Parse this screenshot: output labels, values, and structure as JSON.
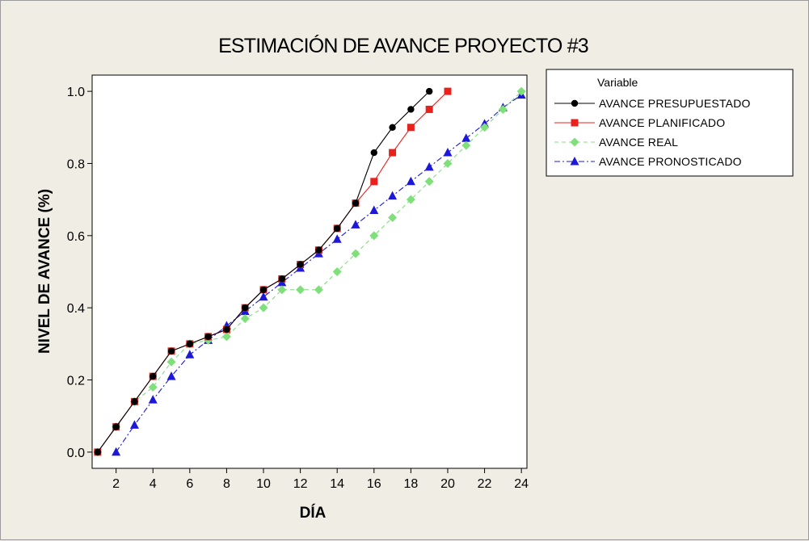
{
  "chart_data": {
    "type": "line",
    "title": "ESTIMACIÓN DE AVANCE PROYECTO #3",
    "xlabel": "DÍA",
    "ylabel": "NIVEL DE AVANCE (%)",
    "xlim": [
      0.7,
      24.3
    ],
    "ylim": [
      -0.045,
      1.045
    ],
    "xticks": [
      2,
      4,
      6,
      8,
      10,
      12,
      14,
      16,
      18,
      20,
      22,
      24
    ],
    "yticks": [
      0.0,
      0.2,
      0.4,
      0.6,
      0.8,
      1.0
    ],
    "ytick_labels": [
      "0.0",
      "0.2",
      "0.4",
      "0.6",
      "0.8",
      "1.0"
    ],
    "grid": false,
    "legend": {
      "title": "Variable",
      "placement": "right"
    },
    "series": [
      {
        "name": "AVANCE PRESUPUESTADO",
        "color": "#000000",
        "marker": "circle",
        "linestyle": "solid",
        "x": [
          1,
          2,
          3,
          4,
          5,
          6,
          7,
          8,
          9,
          10,
          11,
          12,
          13,
          14,
          15,
          16,
          17,
          18,
          19
        ],
        "y": [
          0.0,
          0.07,
          0.14,
          0.21,
          0.28,
          0.3,
          0.32,
          0.34,
          0.4,
          0.45,
          0.48,
          0.52,
          0.56,
          0.62,
          0.69,
          0.83,
          0.9,
          0.95,
          1.0
        ]
      },
      {
        "name": "AVANCE PLANIFICADO",
        "color": "#e8211d",
        "marker": "square",
        "linestyle": "solid",
        "x": [
          1,
          2,
          3,
          4,
          5,
          6,
          7,
          8,
          9,
          10,
          11,
          12,
          13,
          14,
          15,
          16,
          17,
          18,
          19,
          20
        ],
        "y": [
          0.0,
          0.07,
          0.14,
          0.21,
          0.28,
          0.3,
          0.32,
          0.34,
          0.4,
          0.45,
          0.48,
          0.52,
          0.56,
          0.62,
          0.69,
          0.75,
          0.83,
          0.9,
          0.95,
          1.0
        ]
      },
      {
        "name": "AVANCE REAL",
        "color": "#7fe07b",
        "marker": "diamond",
        "linestyle": "dashed",
        "x": [
          1,
          2,
          3,
          4,
          5,
          6,
          7,
          8,
          9,
          10,
          11,
          12,
          13,
          14,
          15,
          16,
          17,
          18,
          19,
          20,
          21,
          22,
          23,
          24
        ],
        "y": [
          0.0,
          0.07,
          0.14,
          0.18,
          0.25,
          0.3,
          0.31,
          0.32,
          0.37,
          0.4,
          0.45,
          0.45,
          0.45,
          0.5,
          0.55,
          0.6,
          0.65,
          0.7,
          0.75,
          0.8,
          0.85,
          0.9,
          0.95,
          1.0
        ]
      },
      {
        "name": "AVANCE PRONOSTICADO",
        "color": "#1d18d8",
        "marker": "triangle",
        "linestyle": "dash-dot",
        "x": [
          2,
          3,
          4,
          5,
          6,
          7,
          8,
          9,
          10,
          11,
          12,
          13,
          14,
          15,
          16,
          17,
          18,
          19,
          20,
          21,
          22,
          23,
          24
        ],
        "y": [
          0.0,
          0.075,
          0.145,
          0.21,
          0.27,
          0.31,
          0.35,
          0.39,
          0.43,
          0.47,
          0.51,
          0.55,
          0.59,
          0.63,
          0.67,
          0.71,
          0.75,
          0.79,
          0.83,
          0.87,
          0.91,
          0.955,
          0.99
        ]
      }
    ]
  }
}
